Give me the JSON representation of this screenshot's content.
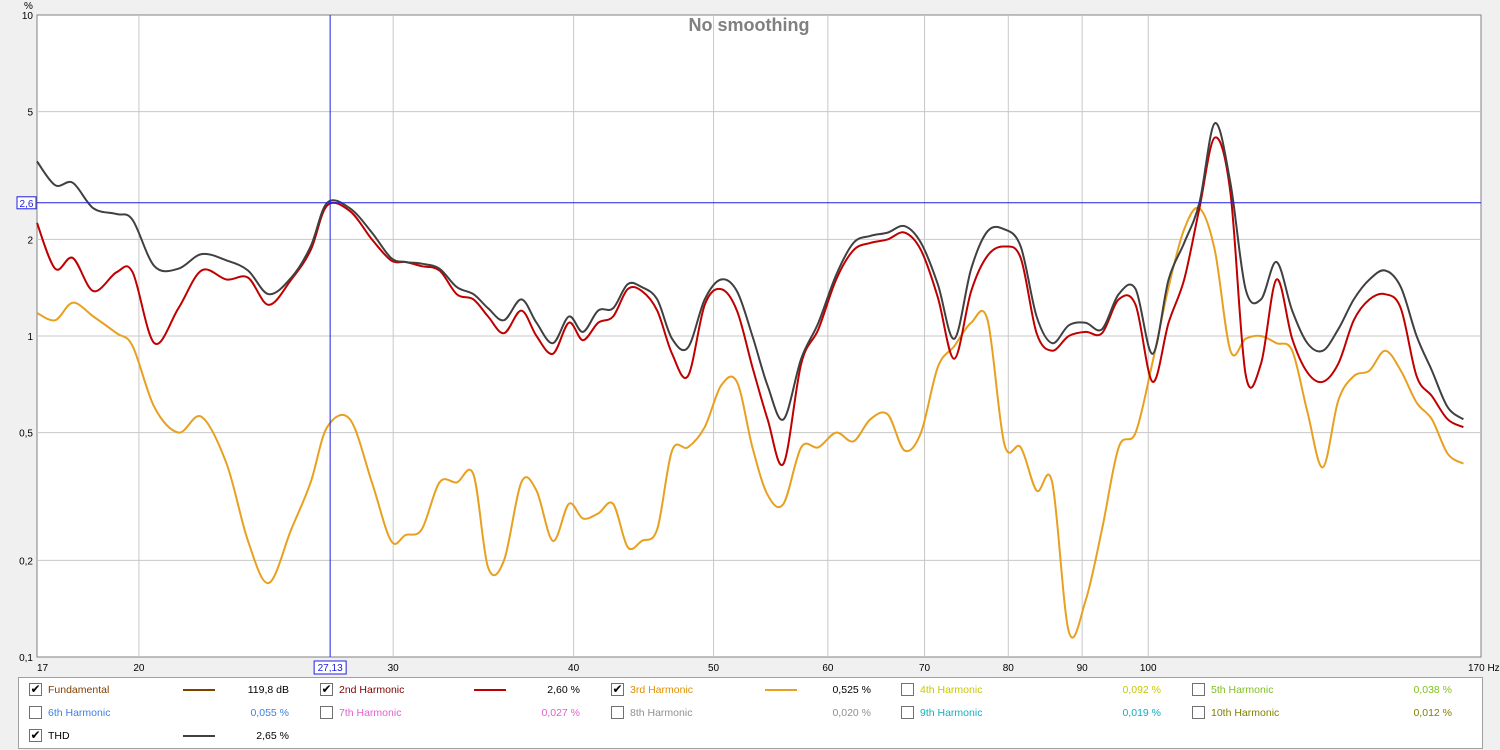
{
  "chart_data": {
    "type": "line",
    "title": "No smoothing",
    "y_unit": "%",
    "x_unit": "Hz",
    "x_scale": "log",
    "y_scale": "log",
    "xlim": [
      17,
      170
    ],
    "ylim": [
      0.1,
      10
    ],
    "grid": true,
    "x_ticks": [
      {
        "v": 17,
        "label": "17"
      },
      {
        "v": 20,
        "label": "20"
      },
      {
        "v": 30,
        "label": "30"
      },
      {
        "v": 40,
        "label": "40"
      },
      {
        "v": 50,
        "label": "50"
      },
      {
        "v": 60,
        "label": "60"
      },
      {
        "v": 70,
        "label": "70"
      },
      {
        "v": 80,
        "label": "80"
      },
      {
        "v": 90,
        "label": "90"
      },
      {
        "v": 100,
        "label": "100"
      },
      {
        "v": 170,
        "label": "170 Hz"
      }
    ],
    "y_ticks": [
      {
        "v": 10,
        "label": "10"
      },
      {
        "v": 5,
        "label": "5"
      },
      {
        "v": 2,
        "label": "2"
      },
      {
        "v": 1,
        "label": "1"
      },
      {
        "v": 0.5,
        "label": "0,5"
      },
      {
        "v": 0.2,
        "label": "0,2"
      },
      {
        "v": 0.1,
        "label": "0,1"
      }
    ],
    "cursor": {
      "x": 27.13,
      "y": 2.6,
      "x_label": "27,13",
      "y_label": "2,6"
    },
    "series": [
      {
        "name": "3rd Harmonic",
        "color": "#e8a020",
        "points": [
          [
            17,
            1.18
          ],
          [
            17.5,
            1.12
          ],
          [
            18,
            1.27
          ],
          [
            18.6,
            1.15
          ],
          [
            19.3,
            1.02
          ],
          [
            19.8,
            0.93
          ],
          [
            20.5,
            0.6
          ],
          [
            21.3,
            0.5
          ],
          [
            22.1,
            0.56
          ],
          [
            23,
            0.4
          ],
          [
            23.8,
            0.23
          ],
          [
            24.6,
            0.17
          ],
          [
            25.5,
            0.25
          ],
          [
            26.3,
            0.35
          ],
          [
            27,
            0.52
          ],
          [
            28,
            0.55
          ],
          [
            29,
            0.35
          ],
          [
            29.9,
            0.23
          ],
          [
            30.6,
            0.24
          ],
          [
            31.4,
            0.25
          ],
          [
            32.3,
            0.35
          ],
          [
            33.2,
            0.35
          ],
          [
            34.1,
            0.37
          ],
          [
            34.9,
            0.19
          ],
          [
            35.8,
            0.2
          ],
          [
            36.8,
            0.35
          ],
          [
            37.7,
            0.33
          ],
          [
            38.7,
            0.23
          ],
          [
            39.7,
            0.3
          ],
          [
            40.6,
            0.27
          ],
          [
            41.6,
            0.28
          ],
          [
            42.6,
            0.3
          ],
          [
            43.6,
            0.22
          ],
          [
            44.6,
            0.23
          ],
          [
            45.7,
            0.25
          ],
          [
            46.8,
            0.44
          ],
          [
            48,
            0.45
          ],
          [
            49.3,
            0.52
          ],
          [
            50.6,
            0.7
          ],
          [
            51.9,
            0.72
          ],
          [
            53.2,
            0.45
          ],
          [
            54.5,
            0.32
          ],
          [
            55.9,
            0.3
          ],
          [
            57.5,
            0.45
          ],
          [
            59.1,
            0.45
          ],
          [
            60.8,
            0.5
          ],
          [
            62.5,
            0.47
          ],
          [
            64.2,
            0.55
          ],
          [
            66,
            0.57
          ],
          [
            67.8,
            0.44
          ],
          [
            69.6,
            0.5
          ],
          [
            71.5,
            0.8
          ],
          [
            73.4,
            0.93
          ],
          [
            75.4,
            1.1
          ],
          [
            77.4,
            1.12
          ],
          [
            79.5,
            0.46
          ],
          [
            81.6,
            0.45
          ],
          [
            83.7,
            0.33
          ],
          [
            85.8,
            0.35
          ],
          [
            88.1,
            0.12
          ],
          [
            90.5,
            0.15
          ],
          [
            92.9,
            0.25
          ],
          [
            95.4,
            0.45
          ],
          [
            98,
            0.5
          ],
          [
            100.7,
            0.83
          ],
          [
            103.3,
            1.42
          ],
          [
            105.9,
            2.15
          ],
          [
            108.5,
            2.5
          ],
          [
            111.2,
            1.85
          ],
          [
            114,
            0.9
          ],
          [
            116.8,
            0.98
          ],
          [
            119.7,
            1
          ],
          [
            122.7,
            0.95
          ],
          [
            125.8,
            0.9
          ],
          [
            128.9,
            0.58
          ],
          [
            132.1,
            0.39
          ],
          [
            135.4,
            0.63
          ],
          [
            138.8,
            0.75
          ],
          [
            142.3,
            0.78
          ],
          [
            145.9,
            0.9
          ],
          [
            149.6,
            0.78
          ],
          [
            153.4,
            0.62
          ],
          [
            157.2,
            0.55
          ],
          [
            161.2,
            0.43
          ],
          [
            165.3,
            0.4
          ]
        ]
      },
      {
        "name": "2nd Harmonic",
        "color": "#c00000",
        "points": [
          [
            17,
            2.25
          ],
          [
            17.5,
            1.62
          ],
          [
            18,
            1.75
          ],
          [
            18.6,
            1.38
          ],
          [
            19.3,
            1.58
          ],
          [
            19.8,
            1.58
          ],
          [
            20.5,
            0.95
          ],
          [
            21.3,
            1.22
          ],
          [
            22.1,
            1.6
          ],
          [
            23,
            1.5
          ],
          [
            23.8,
            1.52
          ],
          [
            24.6,
            1.25
          ],
          [
            25.5,
            1.5
          ],
          [
            26.3,
            1.85
          ],
          [
            27,
            2.55
          ],
          [
            28,
            2.45
          ],
          [
            29,
            2
          ],
          [
            29.9,
            1.72
          ],
          [
            30.6,
            1.7
          ],
          [
            31.4,
            1.65
          ],
          [
            32.3,
            1.6
          ],
          [
            33.2,
            1.35
          ],
          [
            34.1,
            1.3
          ],
          [
            34.9,
            1.15
          ],
          [
            35.8,
            1.02
          ],
          [
            36.8,
            1.2
          ],
          [
            37.7,
            1.0
          ],
          [
            38.7,
            0.88
          ],
          [
            39.7,
            1.1
          ],
          [
            40.6,
            0.97
          ],
          [
            41.6,
            1.1
          ],
          [
            42.6,
            1.15
          ],
          [
            43.6,
            1.4
          ],
          [
            44.6,
            1.38
          ],
          [
            45.7,
            1.2
          ],
          [
            46.8,
            0.88
          ],
          [
            48,
            0.75
          ],
          [
            49.3,
            1.25
          ],
          [
            50.6,
            1.4
          ],
          [
            51.9,
            1.2
          ],
          [
            53.2,
            0.8
          ],
          [
            54.5,
            0.55
          ],
          [
            55.9,
            0.4
          ],
          [
            57.5,
            0.82
          ],
          [
            59.1,
            1.05
          ],
          [
            60.8,
            1.5
          ],
          [
            62.5,
            1.85
          ],
          [
            64.2,
            1.95
          ],
          [
            66,
            2
          ],
          [
            67.8,
            2.1
          ],
          [
            69.6,
            1.85
          ],
          [
            71.5,
            1.32
          ],
          [
            73.4,
            0.85
          ],
          [
            75.4,
            1.38
          ],
          [
            77.4,
            1.78
          ],
          [
            79.5,
            1.9
          ],
          [
            81.6,
            1.75
          ],
          [
            83.7,
            1.02
          ],
          [
            85.8,
            0.9
          ],
          [
            88.1,
            1.0
          ],
          [
            90.5,
            1.03
          ],
          [
            92.9,
            1.02
          ],
          [
            95.4,
            1.3
          ],
          [
            98,
            1.25
          ],
          [
            100.7,
            0.72
          ],
          [
            103.3,
            1.1
          ],
          [
            105.9,
            1.5
          ],
          [
            108.5,
            2.5
          ],
          [
            111.2,
            4.15
          ],
          [
            114,
            2.8
          ],
          [
            116.8,
            0.76
          ],
          [
            119.7,
            0.82
          ],
          [
            122.7,
            1.5
          ],
          [
            125.8,
            0.98
          ],
          [
            128.9,
            0.77
          ],
          [
            132.1,
            0.72
          ],
          [
            135.4,
            0.82
          ],
          [
            138.8,
            1.12
          ],
          [
            142.3,
            1.3
          ],
          [
            145.9,
            1.35
          ],
          [
            149.6,
            1.22
          ],
          [
            153.4,
            0.75
          ],
          [
            157.2,
            0.65
          ],
          [
            161.2,
            0.55
          ],
          [
            165.3,
            0.52
          ]
        ]
      },
      {
        "name": "THD",
        "color": "#404040",
        "points": [
          [
            17,
            3.5
          ],
          [
            17.5,
            2.95
          ],
          [
            18,
            3.0
          ],
          [
            18.6,
            2.5
          ],
          [
            19.3,
            2.4
          ],
          [
            19.8,
            2.3
          ],
          [
            20.5,
            1.65
          ],
          [
            21.3,
            1.62
          ],
          [
            22.1,
            1.8
          ],
          [
            23,
            1.72
          ],
          [
            23.8,
            1.6
          ],
          [
            24.6,
            1.35
          ],
          [
            25.5,
            1.52
          ],
          [
            26.3,
            1.9
          ],
          [
            27,
            2.6
          ],
          [
            28,
            2.5
          ],
          [
            29,
            2.1
          ],
          [
            29.9,
            1.75
          ],
          [
            30.6,
            1.7
          ],
          [
            31.4,
            1.68
          ],
          [
            32.3,
            1.62
          ],
          [
            33.2,
            1.42
          ],
          [
            34.1,
            1.35
          ],
          [
            34.9,
            1.22
          ],
          [
            35.8,
            1.12
          ],
          [
            36.8,
            1.3
          ],
          [
            37.7,
            1.1
          ],
          [
            38.7,
            0.95
          ],
          [
            39.7,
            1.15
          ],
          [
            40.6,
            1.03
          ],
          [
            41.6,
            1.2
          ],
          [
            42.6,
            1.22
          ],
          [
            43.6,
            1.45
          ],
          [
            44.6,
            1.42
          ],
          [
            45.7,
            1.3
          ],
          [
            46.8,
            0.98
          ],
          [
            48,
            0.92
          ],
          [
            49.3,
            1.3
          ],
          [
            50.6,
            1.5
          ],
          [
            51.9,
            1.38
          ],
          [
            53.2,
            1.0
          ],
          [
            54.5,
            0.7
          ],
          [
            55.9,
            0.55
          ],
          [
            57.5,
            0.85
          ],
          [
            59.1,
            1.1
          ],
          [
            60.8,
            1.55
          ],
          [
            62.5,
            1.95
          ],
          [
            64.2,
            2.05
          ],
          [
            66,
            2.1
          ],
          [
            67.8,
            2.2
          ],
          [
            69.6,
            1.95
          ],
          [
            71.5,
            1.45
          ],
          [
            73.4,
            0.98
          ],
          [
            75.4,
            1.62
          ],
          [
            77.4,
            2.12
          ],
          [
            79.5,
            2.15
          ],
          [
            81.6,
            1.9
          ],
          [
            83.7,
            1.15
          ],
          [
            85.8,
            0.95
          ],
          [
            88.1,
            1.08
          ],
          [
            90.5,
            1.1
          ],
          [
            92.9,
            1.05
          ],
          [
            95.4,
            1.35
          ],
          [
            98,
            1.4
          ],
          [
            100.7,
            0.88
          ],
          [
            103.3,
            1.5
          ],
          [
            105.9,
            1.95
          ],
          [
            108.5,
            2.6
          ],
          [
            111.2,
            4.6
          ],
          [
            114,
            3.0
          ],
          [
            116.8,
            1.4
          ],
          [
            119.7,
            1.3
          ],
          [
            122.7,
            1.7
          ],
          [
            125.8,
            1.2
          ],
          [
            128.9,
            0.95
          ],
          [
            132.1,
            0.9
          ],
          [
            135.4,
            1.05
          ],
          [
            138.8,
            1.3
          ],
          [
            142.3,
            1.5
          ],
          [
            145.9,
            1.6
          ],
          [
            149.6,
            1.42
          ],
          [
            153.4,
            1.0
          ],
          [
            157.2,
            0.78
          ],
          [
            161.2,
            0.6
          ],
          [
            165.3,
            0.55
          ]
        ]
      }
    ]
  },
  "legend": [
    {
      "name": "Fundamental",
      "checked": true,
      "color": "#804000",
      "swatch": "#804000",
      "value": "119,8 dB"
    },
    {
      "name": "2nd Harmonic",
      "checked": true,
      "color": "#800000",
      "swatch": "#c00000",
      "value": "2,60 %"
    },
    {
      "name": "3rd Harmonic",
      "checked": true,
      "color": "#e09000",
      "swatch": "#e8a020",
      "value": "0,525 %"
    },
    {
      "name": "4th Harmonic",
      "checked": false,
      "color": "#c8c800",
      "value": "0,092 %"
    },
    {
      "name": "5th Harmonic",
      "checked": false,
      "color": "#80c020",
      "value": "0,038 %"
    },
    {
      "name": "6th Harmonic",
      "checked": false,
      "color": "#4080e0",
      "value": "0,055 %"
    },
    {
      "name": "7th Harmonic",
      "checked": false,
      "color": "#e060d0",
      "value": "0,027 %"
    },
    {
      "name": "8th Harmonic",
      "checked": false,
      "color": "#909090",
      "value": "0,020 %"
    },
    {
      "name": "9th Harmonic",
      "checked": false,
      "color": "#10b0c0",
      "value": "0,019 %"
    },
    {
      "name": "10th Harmonic",
      "checked": false,
      "color": "#808000",
      "value": "0,012 %"
    },
    {
      "name": "THD",
      "checked": true,
      "color": "#000000",
      "swatch": "#404040",
      "value": "2,65 %"
    }
  ]
}
